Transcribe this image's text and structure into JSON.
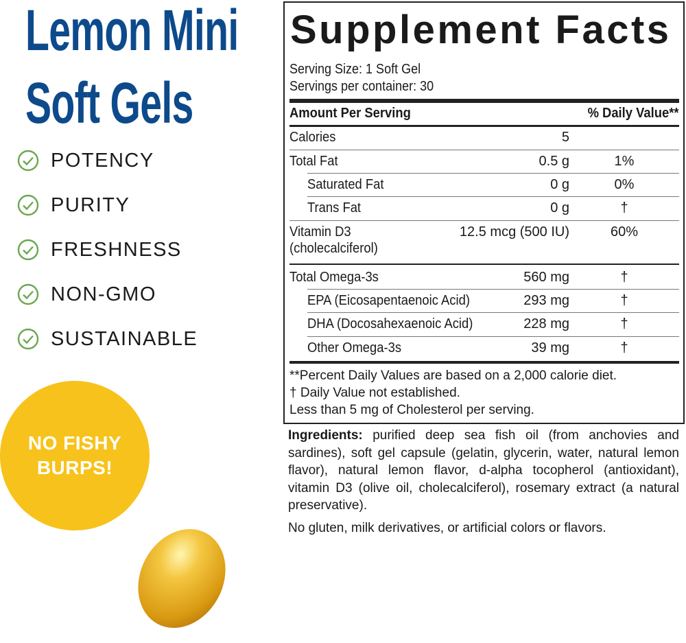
{
  "left": {
    "title_line1": "Lemon Mini",
    "title_line2": "Soft Gels",
    "features": [
      "POTENCY",
      "PURITY",
      "FRESHNESS",
      "NON-GMO",
      "SUSTAINABLE"
    ],
    "check_icon": "check-circle-icon",
    "check_color": "#6aa84f",
    "badge": {
      "line1": "NO FISHY",
      "line2": "BURPS!",
      "color": "#f7c21b"
    },
    "title_color": "#0d4a8b"
  },
  "facts": {
    "title": "Supplement Facts",
    "serving_size": "Serving Size: 1 Soft Gel",
    "servings": "Servings per container: 30",
    "header_amount": "Amount Per Serving",
    "header_dv": "% Daily Value**",
    "rows": [
      {
        "name": "Calories",
        "amount": "5",
        "dv": ""
      },
      {
        "name": "Total Fat",
        "amount": "0.5 g",
        "dv": "1%"
      },
      {
        "name": "Saturated Fat",
        "amount": "0 g",
        "dv": "0%"
      },
      {
        "name": "Trans Fat",
        "amount": "0 g",
        "dv": "†"
      },
      {
        "name": "Vitamin D3",
        "name2": "(cholecalciferol)",
        "amount": "12.5 mcg (500 IU)",
        "dv": "60%"
      },
      {
        "name": "Total Omega-3s",
        "amount": "560 mg",
        "dv": "†"
      },
      {
        "name": "EPA (Eicosapentaenoic Acid)",
        "amount": "293 mg",
        "dv": "†"
      },
      {
        "name": "DHA (Docosahexaenoic Acid)",
        "amount": "228 mg",
        "dv": "†"
      },
      {
        "name": "Other Omega-3s",
        "amount": "39 mg",
        "dv": "†"
      }
    ],
    "footnotes": [
      "**Percent Daily Values are based on a 2,000 calorie diet.",
      "†  Daily Value not established.",
      "Less than 5 mg of Cholesterol per serving."
    ]
  },
  "ingredients": {
    "label": "Ingredients:",
    "text": " purified deep sea fish oil (from anchovies and sardines), soft gel capsule (gelatin, glycerin, water, natural lemon flavor), natural lemon flavor, d-alpha tocopherol (antioxidant), vitamin D3 (olive oil, cholecalciferol), rosemary extract (a natural preservative).",
    "free_from": "No gluten, milk derivatives, or artificial colors or flavors."
  }
}
